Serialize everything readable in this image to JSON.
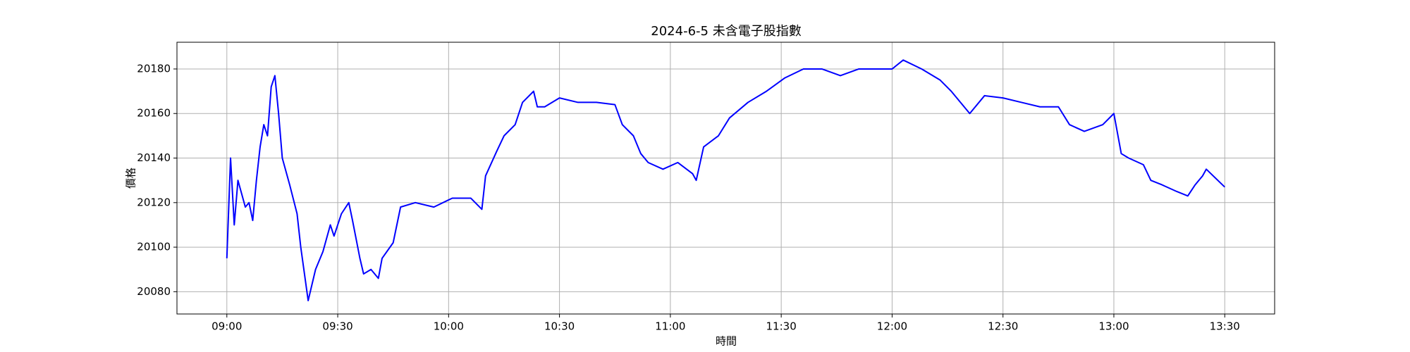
{
  "chart_data": {
    "type": "line",
    "title": "2024-6-5 未含電子股指數",
    "xlabel": "時間",
    "ylabel": "價格",
    "x": [
      "09:00",
      "09:01",
      "09:02",
      "09:03",
      "09:05",
      "09:06",
      "09:07",
      "09:08",
      "09:09",
      "09:10",
      "09:11",
      "09:12",
      "09:13",
      "09:14",
      "09:15",
      "09:17",
      "09:19",
      "09:20",
      "09:22",
      "09:24",
      "09:26",
      "09:28",
      "09:29",
      "09:31",
      "09:33",
      "09:34",
      "09:36",
      "09:37",
      "09:39",
      "09:41",
      "09:42",
      "09:45",
      "09:47",
      "09:51",
      "09:56",
      "10:01",
      "10:06",
      "10:09",
      "10:10",
      "10:13",
      "10:15",
      "10:18",
      "10:20",
      "10:23",
      "10:24",
      "10:26",
      "10:30",
      "10:35",
      "10:40",
      "10:45",
      "10:47",
      "10:50",
      "10:52",
      "10:54",
      "10:58",
      "11:02",
      "11:06",
      "11:07",
      "11:09",
      "11:13",
      "11:16",
      "11:21",
      "11:26",
      "11:31",
      "11:36",
      "11:41",
      "11:46",
      "11:51",
      "11:56",
      "12:00",
      "12:03",
      "12:08",
      "12:13",
      "12:16",
      "12:21",
      "12:25",
      "12:30",
      "12:35",
      "12:40",
      "12:45",
      "12:48",
      "12:52",
      "12:57",
      "13:00",
      "13:02",
      "13:04",
      "13:08",
      "13:10",
      "13:13",
      "13:17",
      "13:20",
      "13:22",
      "13:24",
      "13:25",
      "13:30"
    ],
    "series": [
      {
        "name": "價格",
        "color": "#0000ff",
        "values": [
          20095,
          20140,
          20110,
          20130,
          20118,
          20120,
          20112,
          20130,
          20145,
          20155,
          20150,
          20172,
          20177,
          20160,
          20140,
          20128,
          20115,
          20100,
          20076,
          20090,
          20098,
          20110,
          20105,
          20115,
          20120,
          20112,
          20095,
          20088,
          20090,
          20086,
          20095,
          20102,
          20118,
          20120,
          20118,
          20122,
          20122,
          20117,
          20132,
          20143,
          20150,
          20155,
          20165,
          20170,
          20163,
          20163,
          20167,
          20165,
          20165,
          20164,
          20155,
          20150,
          20142,
          20138,
          20135,
          20138,
          20133,
          20130,
          20145,
          20150,
          20158,
          20165,
          20170,
          20176,
          20180,
          20180,
          20177,
          20180,
          20180,
          20180,
          20184,
          20180,
          20175,
          20170,
          20160,
          20168,
          20167,
          20165,
          20163,
          20163,
          20155,
          20152,
          20155,
          20160,
          20142,
          20140,
          20137,
          20130,
          20128,
          20125,
          20123,
          20128,
          20132,
          20135,
          20127
        ]
      }
    ],
    "xlim": [
      "08:46:30",
      "13:43:30"
    ],
    "xticks": [
      "09:00",
      "09:30",
      "10:00",
      "10:30",
      "11:00",
      "11:30",
      "12:00",
      "12:30",
      "13:00",
      "13:30"
    ],
    "ylim": [
      20070,
      20192
    ],
    "yticks": [
      20080,
      20100,
      20120,
      20140,
      20160,
      20180
    ],
    "grid": true
  }
}
